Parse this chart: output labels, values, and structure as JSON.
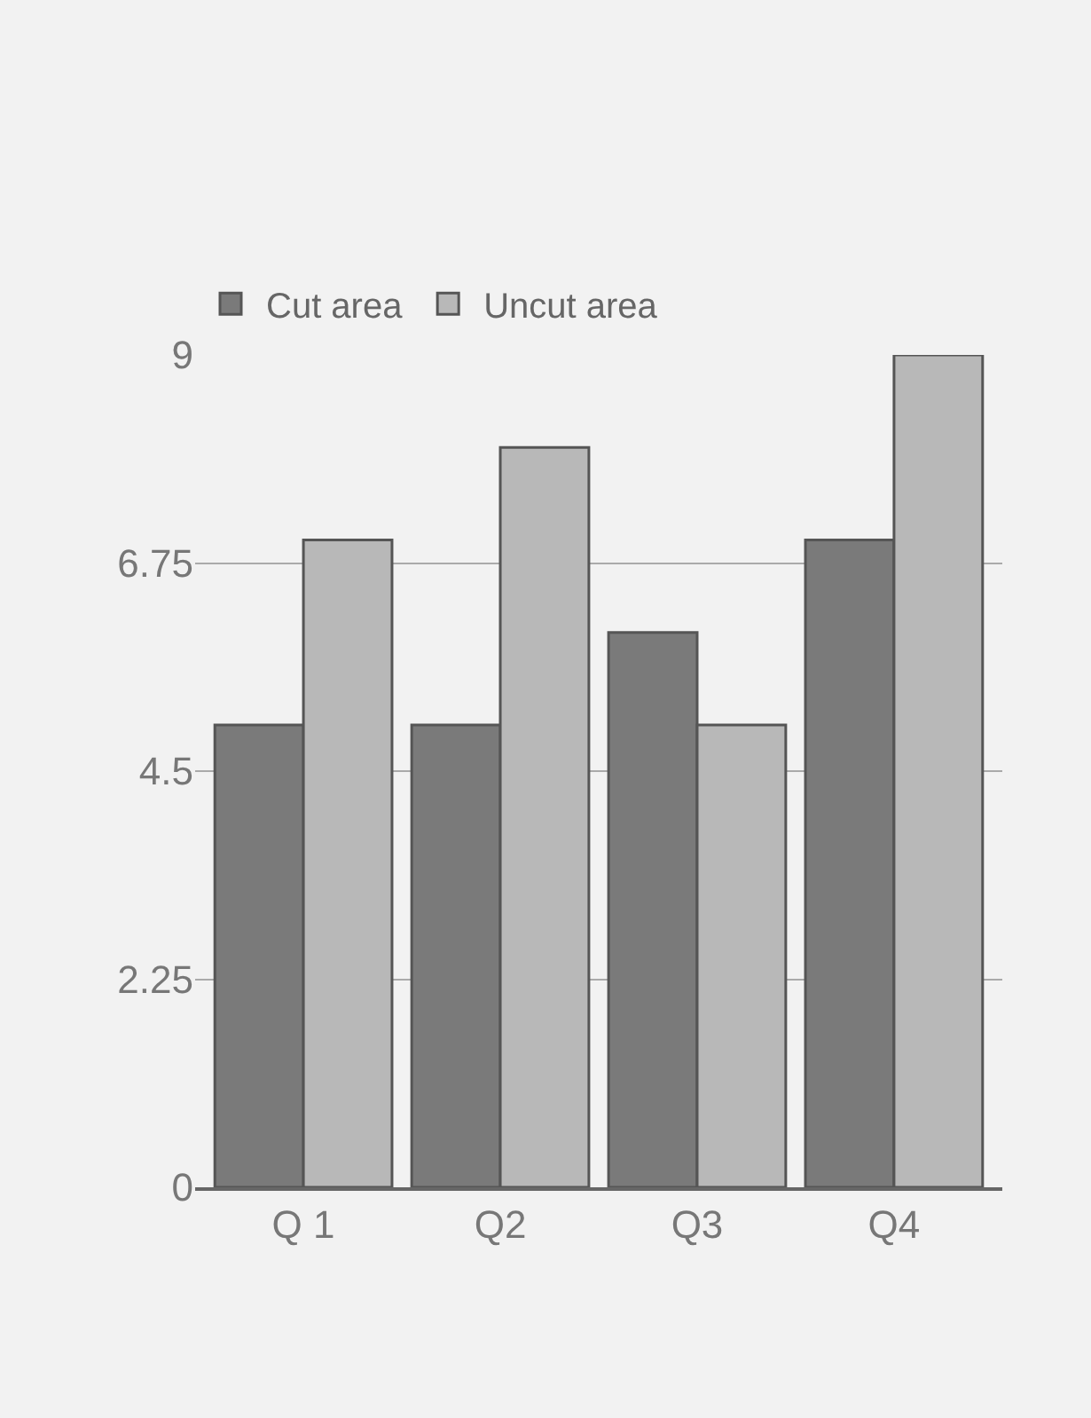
{
  "chart_data": {
    "type": "bar",
    "categories": [
      "Q 1",
      "Q2",
      "Q3",
      "Q4"
    ],
    "series": [
      {
        "name": "Cut area",
        "color": "#7a7a7a",
        "values": [
          5,
          5,
          6,
          7
        ]
      },
      {
        "name": "Uncut area",
        "color": "#b8b8b8",
        "values": [
          7,
          8,
          5,
          9
        ]
      }
    ],
    "ylim": [
      0,
      9
    ],
    "yticks": [
      0,
      2.25,
      4.5,
      6.75,
      9
    ],
    "grid": "y",
    "legend": "top left"
  }
}
